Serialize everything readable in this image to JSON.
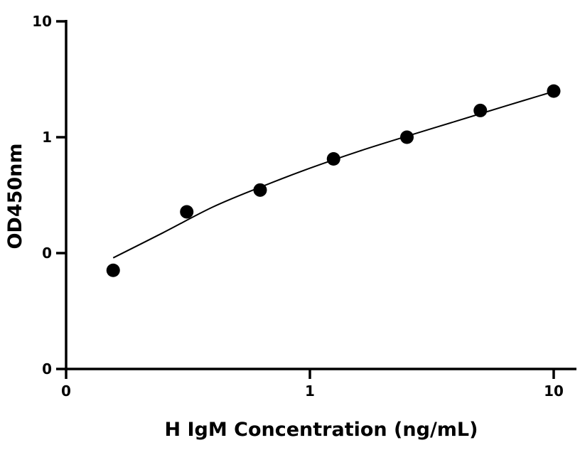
{
  "chart_data": {
    "type": "scatter",
    "title": "",
    "xlabel": "H IgM Concentration (ng/mL)",
    "ylabel": "OD450nm",
    "x_scale": "log",
    "y_scale": "log",
    "xlim": [
      0.1,
      10
    ],
    "ylim": [
      0.01,
      10
    ],
    "x_ticks": [
      {
        "value": 0.1,
        "label": "0"
      },
      {
        "value": 1,
        "label": "1"
      },
      {
        "value": 10,
        "label": "10"
      }
    ],
    "y_ticks": [
      {
        "value": 0.01,
        "label": "0"
      },
      {
        "value": 0.1,
        "label": "0"
      },
      {
        "value": 1,
        "label": "1"
      },
      {
        "value": 10,
        "label": "10"
      }
    ],
    "grid": false,
    "legend": "none",
    "series": [
      {
        "points": [
          {
            "x": 0.156,
            "y": 0.071
          },
          {
            "x": 0.3125,
            "y": 0.227
          },
          {
            "x": 0.625,
            "y": 0.35
          },
          {
            "x": 1.25,
            "y": 0.65
          },
          {
            "x": 2.5,
            "y": 1.0
          },
          {
            "x": 5,
            "y": 1.7
          },
          {
            "x": 10,
            "y": 2.5
          }
        ],
        "color": "#000000"
      }
    ],
    "fit_curve": {
      "points": [
        {
          "x": 0.156,
          "y": 0.091
        },
        {
          "x": 0.25,
          "y": 0.15
        },
        {
          "x": 0.4,
          "y": 0.25
        },
        {
          "x": 0.625,
          "y": 0.37
        },
        {
          "x": 1.0,
          "y": 0.54
        },
        {
          "x": 1.6,
          "y": 0.76
        },
        {
          "x": 2.5,
          "y": 1.02
        },
        {
          "x": 4.0,
          "y": 1.38
        },
        {
          "x": 6.3,
          "y": 1.85
        },
        {
          "x": 10,
          "y": 2.48
        }
      ],
      "color": "#000000"
    }
  }
}
